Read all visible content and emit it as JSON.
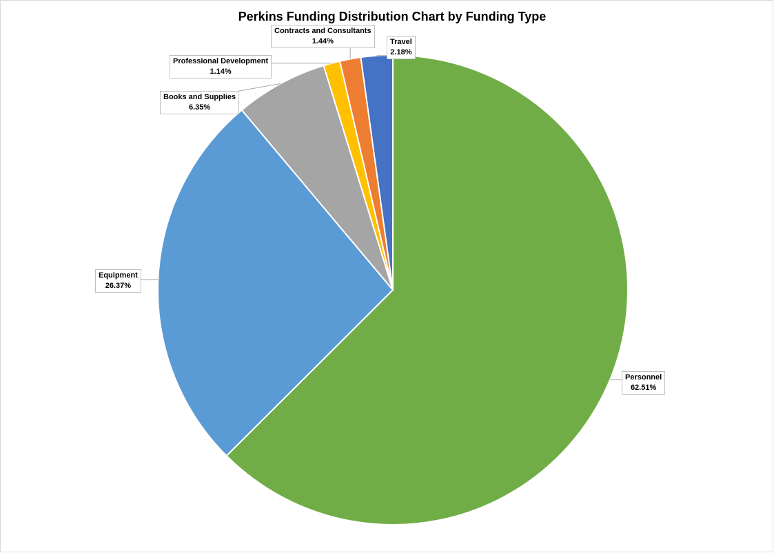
{
  "chart_data": {
    "type": "pie",
    "title": "Perkins Funding Distribution Chart by Funding Type",
    "slices": [
      {
        "name": "Personnel",
        "label": "Personnel",
        "value": 62.51,
        "percent_label": "62.51%",
        "color": "#70AD47"
      },
      {
        "name": "Equipment",
        "label": "Equipment",
        "value": 26.37,
        "percent_label": "26.37%",
        "color": "#5B9BD5"
      },
      {
        "name": "Books and Supplies",
        "label": "Books and Supplies",
        "value": 6.35,
        "percent_label": "6.35%",
        "color": "#A5A5A5"
      },
      {
        "name": "Professional Development",
        "label": "Professional Development",
        "value": 1.14,
        "percent_label": "1.14%",
        "color": "#FFC000"
      },
      {
        "name": "Contracts and Consultants",
        "label": "Contracts and Consultants",
        "value": 1.44,
        "percent_label": "1.44%",
        "color": "#ED7D31"
      },
      {
        "name": "Travel",
        "label": "Travel",
        "value": 2.18,
        "percent_label": "2.18%",
        "color": "#4472C4"
      }
    ],
    "start": "12 o'clock",
    "direction": "clockwise",
    "legend": "none",
    "data_labels": "outside with leader lines"
  }
}
